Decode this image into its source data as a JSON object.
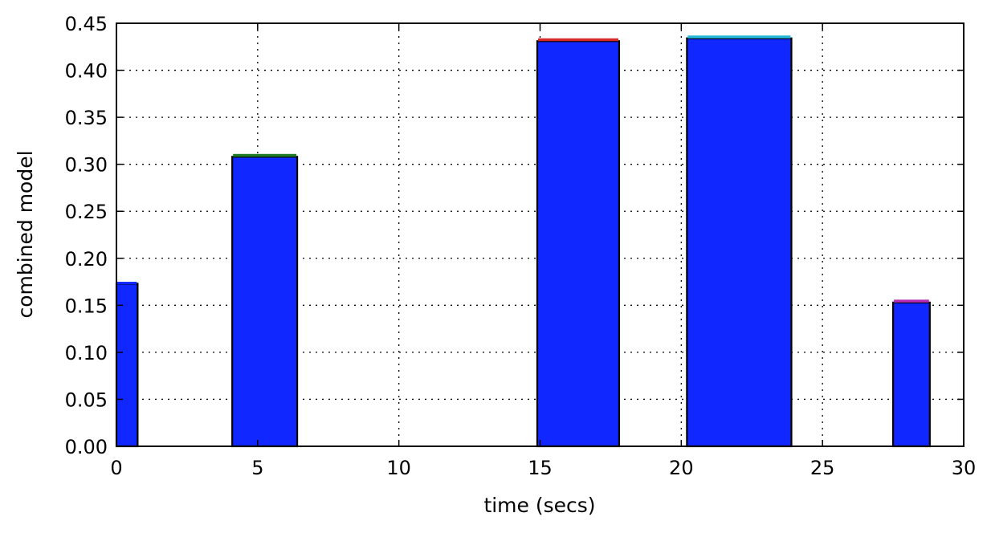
{
  "chart_data": {
    "type": "bar",
    "title": "",
    "xlabel": "time (secs)",
    "ylabel": "combined model",
    "xlim": [
      0,
      30
    ],
    "ylim": [
      0,
      0.45
    ],
    "xticks": [
      0,
      5,
      10,
      15,
      20,
      25,
      30
    ],
    "xtick_labels": [
      "0",
      "5",
      "10",
      "15",
      "20",
      "25",
      "30"
    ],
    "yticks": [
      0,
      0.05,
      0.1,
      0.15,
      0.2,
      0.25,
      0.3,
      0.35,
      0.4,
      0.45
    ],
    "ytick_labels": [
      "0.00",
      "0.05",
      "0.10",
      "0.15",
      "0.20",
      "0.25",
      "0.30",
      "0.35",
      "0.40",
      "0.45"
    ],
    "grid": true,
    "bar_color": "#1127ff",
    "bars": [
      {
        "x_start": 0.0,
        "x_end": 0.75,
        "value": 0.173,
        "cap": 0.002,
        "cap_color": "#1127ff"
      },
      {
        "x_start": 4.1,
        "x_end": 6.4,
        "value": 0.308,
        "cap": 0.003,
        "cap_color": "#1e7a25"
      },
      {
        "x_start": 14.9,
        "x_end": 17.8,
        "value": 0.431,
        "cap": 0.003,
        "cap_color": "#d42a2a"
      },
      {
        "x_start": 20.2,
        "x_end": 23.9,
        "value": 0.434,
        "cap": 0.003,
        "cap_color": "#25b8d8"
      },
      {
        "x_start": 27.5,
        "x_end": 28.8,
        "value": 0.153,
        "cap": 0.003,
        "cap_color": "#b62ab6"
      }
    ]
  }
}
